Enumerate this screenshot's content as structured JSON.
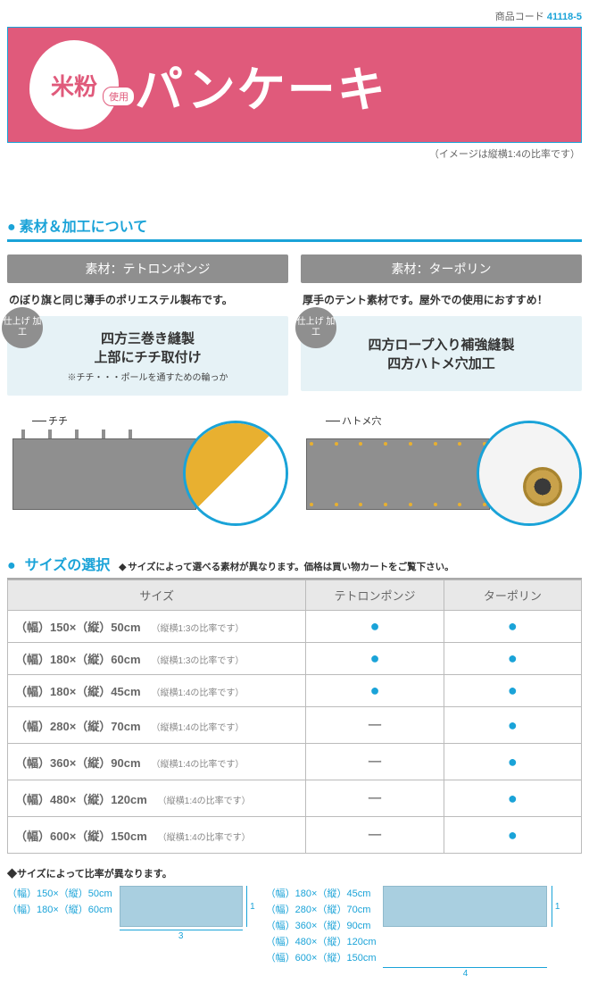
{
  "product_code": {
    "label": "商品コード",
    "value": "41118-5"
  },
  "banner": {
    "komeko": "米粉",
    "siyou": "使用",
    "title": "パンケーキ",
    "caption": "（イメージは縦横1:4の比率です）",
    "bg_color": "#e05a7b",
    "border_color": "#1aa3d8",
    "text_color": "#ffffff"
  },
  "section_material": {
    "heading": "素材＆加工について",
    "columns": [
      {
        "material_label": "素材：テトロンポンジ",
        "description": "のぼり旗と同じ薄手のポリエステル製布です。",
        "finish_badge": "仕上げ\n加工",
        "finish_lines": [
          "四方三巻き縫製",
          "上部にチチ取付け"
        ],
        "finish_note": "※チチ・・・ポールを通すための輪っか",
        "diagram_label": "チチ"
      },
      {
        "material_label": "素材：ターポリン",
        "description": "厚手のテント素材です。屋外での使用におすすめ！",
        "finish_badge": "仕上げ\n加工",
        "finish_lines": [
          "四方ロープ入り補強縫製",
          "四方ハトメ穴加工"
        ],
        "finish_note": "",
        "diagram_label": "ハトメ穴"
      }
    ]
  },
  "section_size": {
    "heading": "サイズの選択",
    "sub": "サイズによって選べる素材が異なります。価格は買い物カートをご覧下さい。",
    "columns": [
      "サイズ",
      "テトロンポンジ",
      "ターポリン"
    ],
    "rows": [
      {
        "size": "（幅）150×（縦）50cm",
        "ratio": "（縦横1:3の比率です）",
        "tet": true,
        "tar": true
      },
      {
        "size": "（幅）180×（縦）60cm",
        "ratio": "（縦横1:3の比率です）",
        "tet": true,
        "tar": true
      },
      {
        "size": "（幅）180×（縦）45cm",
        "ratio": "（縦横1:4の比率です）",
        "tet": true,
        "tar": true
      },
      {
        "size": "（幅）280×（縦）70cm",
        "ratio": "（縦横1:4の比率です）",
        "tet": false,
        "tar": true
      },
      {
        "size": "（幅）360×（縦）90cm",
        "ratio": "（縦横1:4の比率です）",
        "tet": false,
        "tar": true
      },
      {
        "size": "（幅）480×（縦）120cm",
        "ratio": "（縦横1:4の比率です）",
        "tet": false,
        "tar": true
      },
      {
        "size": "（幅）600×（縦）150cm",
        "ratio": "（縦横1:4の比率です）",
        "tet": false,
        "tar": true
      }
    ]
  },
  "ratio_section": {
    "note": "サイズによって比率が異なります。",
    "group_3": {
      "sizes": [
        "（幅）150×（縦）50cm",
        "（幅）180×（縦）60cm"
      ],
      "v": "1",
      "h": "3"
    },
    "group_4": {
      "sizes": [
        "（幅）180×（縦）45cm",
        "（幅）280×（縦）70cm",
        "（幅）360×（縦）90cm",
        "（幅）480×（縦）120cm",
        "（幅）600×（縦）150cm"
      ],
      "v": "1",
      "h": "4"
    }
  },
  "colors": {
    "accent": "#1aa3d8",
    "grey": "#8f8f8f",
    "light_box": "#e6f2f6",
    "ratio_box": "#a9cfe0"
  },
  "marks": {
    "available": "●",
    "unavailable": "ー"
  }
}
